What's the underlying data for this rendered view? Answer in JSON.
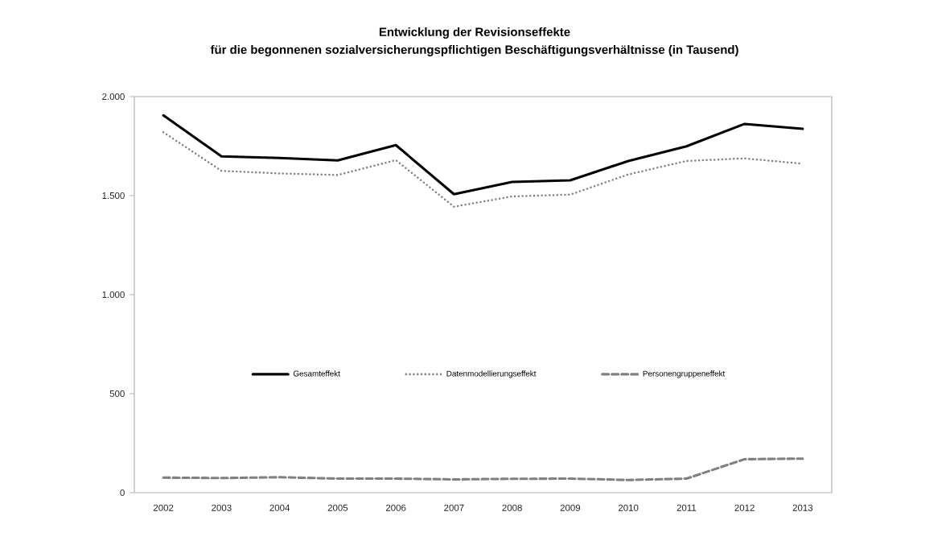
{
  "chart_data": {
    "type": "line",
    "title": "Entwicklung der Revisionseffekte",
    "subtitle": "für die begonnenen sozialversicherungspflichtigen Beschäftigungsverhältnisse (in Tausend)",
    "categories": [
      "2002",
      "2003",
      "2004",
      "2005",
      "2006",
      "2007",
      "2008",
      "2009",
      "2010",
      "2011",
      "2012",
      "2013"
    ],
    "series": [
      {
        "name": "Gesamteffekt",
        "color": "#000000",
        "line_style": "solid",
        "values": [
          1905,
          1698,
          1690,
          1678,
          1755,
          1507,
          1569,
          1577,
          1675,
          1749,
          1862,
          1837
        ]
      },
      {
        "name": "Datenmodellierungseffekt",
        "color": "#808080",
        "line_style": "dotted",
        "values": [
          1820,
          1625,
          1612,
          1604,
          1679,
          1444,
          1496,
          1505,
          1607,
          1675,
          1688,
          1661
        ]
      },
      {
        "name": "Personengruppeneffekt",
        "color": "#808080",
        "line_style": "dashed",
        "values": [
          76,
          74,
          78,
          71,
          71,
          67,
          70,
          71,
          64,
          71,
          169,
          172
        ]
      }
    ],
    "ylim": [
      0,
      2000
    ],
    "yticks": [
      0,
      500,
      {
        "value": 1000,
        "label": "1.000"
      },
      {
        "value": 1500,
        "label": "1.500"
      },
      {
        "value": 2000,
        "label": "2.000"
      }
    ],
    "legend": "center"
  }
}
